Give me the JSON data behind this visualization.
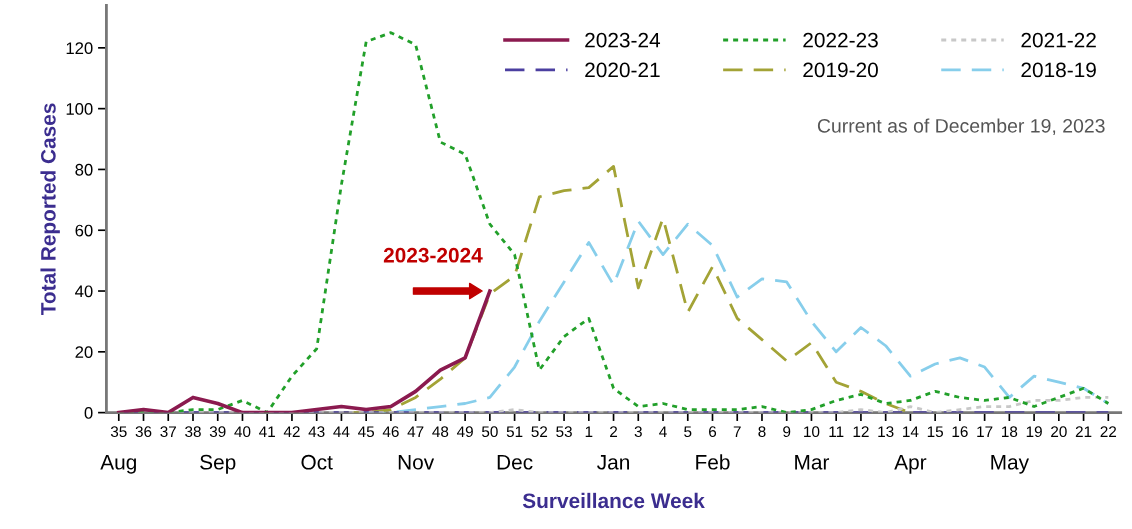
{
  "chart_data": {
    "type": "line",
    "xlabel": "Surveillance Week",
    "ylabel": "Total Reported Cases",
    "categories": [
      "35",
      "36",
      "37",
      "38",
      "39",
      "40",
      "41",
      "42",
      "43",
      "44",
      "45",
      "46",
      "47",
      "48",
      "49",
      "50",
      "51",
      "52",
      "53",
      "1",
      "2",
      "3",
      "4",
      "5",
      "6",
      "7",
      "8",
      "9",
      "10",
      "11",
      "12",
      "13",
      "14",
      "15",
      "16",
      "17",
      "18",
      "19",
      "20",
      "21",
      "22"
    ],
    "series": [
      {
        "name": "2023-24",
        "color": "#8b1a4f",
        "line_style": "solid",
        "values": [
          0,
          1,
          0,
          5,
          3,
          0,
          0,
          0,
          1,
          2,
          1,
          2,
          7,
          14,
          18,
          40,
          null,
          null,
          null,
          null,
          null,
          null,
          null,
          null,
          null,
          null,
          null,
          null,
          null,
          null,
          null,
          null,
          null,
          null,
          null,
          null,
          null,
          null,
          null,
          null,
          null
        ]
      },
      {
        "name": "2022-23",
        "color": "#22a02a",
        "line_style": "dotted",
        "values": [
          0,
          0,
          0,
          1,
          1,
          4,
          0,
          12,
          21,
          75,
          122,
          125,
          121,
          89,
          85,
          62,
          52,
          14,
          25,
          31,
          8,
          2,
          3,
          1,
          1,
          1,
          2,
          0,
          1,
          4,
          6,
          3,
          4,
          7,
          5,
          4,
          5,
          2,
          5,
          8,
          3
        ]
      },
      {
        "name": "2021-22",
        "color": "#c8c8c8",
        "line_style": "dotted",
        "values": [
          0,
          0,
          0,
          0,
          0,
          0,
          0,
          0,
          0,
          0,
          0,
          0,
          0,
          0,
          0,
          0,
          1,
          0,
          0,
          0,
          0,
          0,
          0,
          0,
          0,
          0,
          0,
          0,
          0,
          0,
          1,
          0,
          2,
          0,
          1,
          2,
          2,
          4,
          4,
          5,
          5
        ]
      },
      {
        "name": "2020-21",
        "color": "#4b3fa0",
        "line_style": "dashed",
        "values": [
          0,
          0,
          0,
          0,
          0,
          0,
          0,
          0,
          0,
          0,
          0,
          0,
          0,
          0,
          0,
          0,
          0,
          0,
          0,
          0,
          0,
          0,
          0,
          0,
          0,
          0,
          0,
          0,
          0,
          0,
          0,
          0,
          0,
          0,
          0,
          0,
          0,
          0,
          0,
          0,
          0
        ]
      },
      {
        "name": "2019-20",
        "color": "#a3a336",
        "line_style": "dashed",
        "values": [
          null,
          null,
          null,
          null,
          null,
          null,
          null,
          null,
          null,
          0,
          0,
          1,
          5,
          11,
          18,
          39,
          45,
          71,
          73,
          74,
          81,
          41,
          64,
          33,
          48,
          31,
          24,
          17,
          23,
          10,
          7,
          3,
          0,
          null,
          null,
          null,
          null,
          null,
          null,
          null,
          null
        ]
      },
      {
        "name": "2018-19",
        "color": "#87ceeb",
        "line_style": "dashed",
        "values": [
          null,
          null,
          null,
          null,
          null,
          null,
          null,
          null,
          null,
          null,
          0,
          0,
          1,
          2,
          3,
          5,
          15,
          30,
          43,
          56,
          42,
          63,
          52,
          62,
          55,
          38,
          44,
          43,
          30,
          20,
          28,
          22,
          12,
          16,
          18,
          15,
          5,
          12,
          10,
          8,
          3
        ]
      }
    ],
    "ylim": [
      0,
      134
    ],
    "yticks": [
      0,
      20,
      40,
      60,
      80,
      100,
      120
    ],
    "grid": false,
    "legend": "top right",
    "marker": "none",
    "annotations": [
      "Current as of December 19, 2023",
      {
        "text": "2023-2024",
        "x": "50",
        "y": 40
      },
      "Aug",
      "Sep",
      "Oct",
      "Nov",
      "Dec",
      "Jan",
      "Feb",
      "Mar",
      "Apr",
      "May"
    ]
  }
}
